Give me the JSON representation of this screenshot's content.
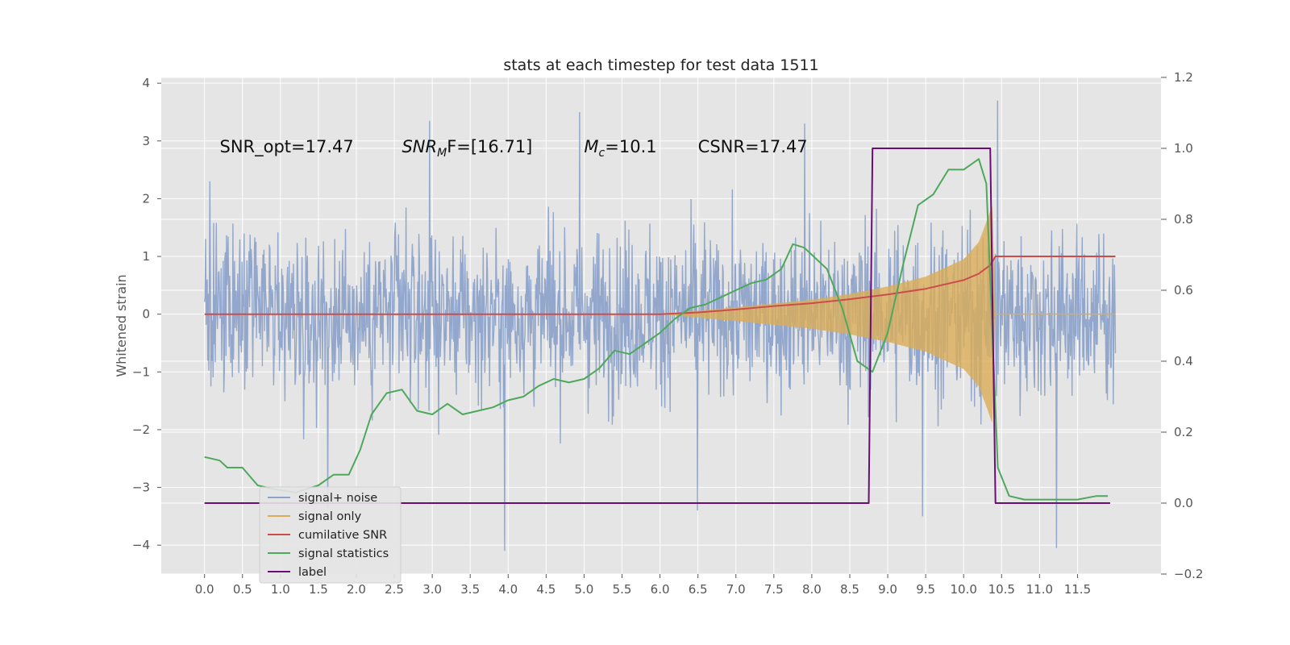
{
  "chart_data": {
    "type": "line",
    "title": "stats at each timestep for test data 1511",
    "ylabel": "Whitened strain",
    "xlim": [
      -0.57,
      12.6
    ],
    "ylim": [
      -4.5,
      4.1
    ],
    "y2lim": [
      -0.2,
      1.2
    ],
    "x_ticks": [
      0.0,
      0.5,
      1.0,
      1.5,
      2.0,
      2.5,
      3.0,
      3.5,
      4.0,
      4.5,
      5.0,
      5.5,
      6.0,
      6.5,
      7.0,
      7.5,
      8.0,
      8.5,
      9.0,
      9.5,
      10.0,
      10.5,
      11.0,
      11.5
    ],
    "x_tick_labels": [
      "0.0",
      "0.5",
      "1.0",
      "1.5",
      "2.0",
      "2.5",
      "3.0",
      "3.5",
      "4.0",
      "4.5",
      "5.0",
      "5.5",
      "6.0",
      "6.5",
      "7.0",
      "7.5",
      "8.0",
      "8.5",
      "9.0",
      "9.5",
      "10.0",
      "10.5",
      "11.0",
      "11.5"
    ],
    "y_ticks": [
      -4,
      -3,
      -2,
      -1,
      0,
      1,
      2,
      3,
      4
    ],
    "y_tick_labels": [
      "−4",
      "−3",
      "−2",
      "−1",
      "0",
      "1",
      "2",
      "3",
      "4"
    ],
    "y2_ticks": [
      -0.2,
      0.0,
      0.2,
      0.4,
      0.6,
      0.8,
      1.0,
      1.2
    ],
    "y2_tick_labels": [
      "−0.2",
      "0.0",
      "0.2",
      "0.4",
      "0.6",
      "0.8",
      "1.0",
      "1.2"
    ],
    "grid": true,
    "legend_position": "lower-left",
    "annotations": [
      {
        "text": "SNR_opt=17.47",
        "x": 0.2,
        "y": 2.8
      },
      {
        "prefix": "SNR",
        "sub": "M",
        "suffix": "F=[16.71]",
        "x": 2.6,
        "y": 2.8
      },
      {
        "prefix": "M",
        "sub": "c",
        "suffix": "=10.1",
        "x": 5.0,
        "y": 2.8
      },
      {
        "text": "CSNR=17.47",
        "x": 6.5,
        "y": 2.8
      }
    ],
    "series": [
      {
        "name": "signal+ noise",
        "axis": "left",
        "kind": "noise",
        "x_range": [
          0.0,
          12.0
        ],
        "envelope_typical": 1.6,
        "peak_values": [
          2.3,
          -3.35,
          3.35,
          -4.1,
          3.5,
          -3.4,
          3.3,
          -3.5,
          3.7,
          -4.05
        ]
      },
      {
        "name": "signal only",
        "axis": "left",
        "kind": "chirp",
        "x": [
          6.0,
          7.0,
          8.0,
          8.5,
          9.0,
          9.5,
          10.0,
          10.2,
          10.3,
          10.38,
          10.42,
          12.0
        ],
        "amplitude": [
          0.0,
          0.12,
          0.25,
          0.35,
          0.48,
          0.65,
          0.95,
          1.25,
          1.6,
          1.9,
          0.0,
          0.0
        ]
      },
      {
        "name": "cumilative SNR",
        "axis": "left",
        "x": [
          0.0,
          6.0,
          6.5,
          7.0,
          7.5,
          8.0,
          8.5,
          9.0,
          9.5,
          10.0,
          10.2,
          10.35,
          10.42,
          12.0
        ],
        "y": [
          0.0,
          0.0,
          0.03,
          0.08,
          0.14,
          0.19,
          0.26,
          0.34,
          0.44,
          0.59,
          0.7,
          0.85,
          1.0,
          1.0
        ]
      },
      {
        "name": "signal statistics",
        "axis": "right",
        "x": [
          0.0,
          0.2,
          0.3,
          0.5,
          0.7,
          0.9,
          1.2,
          1.5,
          1.7,
          1.9,
          2.05,
          2.2,
          2.4,
          2.6,
          2.8,
          3.0,
          3.2,
          3.4,
          3.6,
          3.8,
          4.0,
          4.2,
          4.4,
          4.6,
          4.8,
          5.0,
          5.2,
          5.4,
          5.6,
          5.8,
          6.0,
          6.2,
          6.4,
          6.6,
          6.8,
          7.0,
          7.2,
          7.4,
          7.6,
          7.75,
          7.9,
          8.0,
          8.2,
          8.4,
          8.6,
          8.8,
          9.0,
          9.2,
          9.4,
          9.6,
          9.8,
          10.0,
          10.2,
          10.3,
          10.45,
          10.6,
          10.8,
          11.0,
          11.5,
          11.75,
          11.9
        ],
        "y": [
          0.13,
          0.12,
          0.1,
          0.1,
          0.05,
          0.04,
          0.03,
          0.05,
          0.08,
          0.08,
          0.15,
          0.25,
          0.31,
          0.32,
          0.26,
          0.25,
          0.28,
          0.25,
          0.26,
          0.27,
          0.29,
          0.3,
          0.33,
          0.35,
          0.34,
          0.35,
          0.38,
          0.43,
          0.42,
          0.45,
          0.48,
          0.52,
          0.55,
          0.56,
          0.58,
          0.6,
          0.62,
          0.63,
          0.66,
          0.73,
          0.72,
          0.7,
          0.66,
          0.55,
          0.4,
          0.37,
          0.48,
          0.67,
          0.84,
          0.87,
          0.94,
          0.94,
          0.97,
          0.9,
          0.1,
          0.02,
          0.01,
          0.01,
          0.01,
          0.02,
          0.02
        ]
      },
      {
        "name": "label",
        "axis": "right",
        "x": [
          0.0,
          8.75,
          8.8,
          10.35,
          10.42,
          11.93
        ],
        "y": [
          0.0,
          0.0,
          1.0,
          1.0,
          0.0,
          0.0
        ]
      }
    ]
  },
  "colors": {
    "plot_bg": "#e5e5e5",
    "grid": "#ffffff",
    "noise": "#8da3c9",
    "signal_only": "#dbac58",
    "cumulative_snr": "#cc4c4c",
    "signal_statistics": "#4ea85c",
    "label": "#6a0d75"
  }
}
